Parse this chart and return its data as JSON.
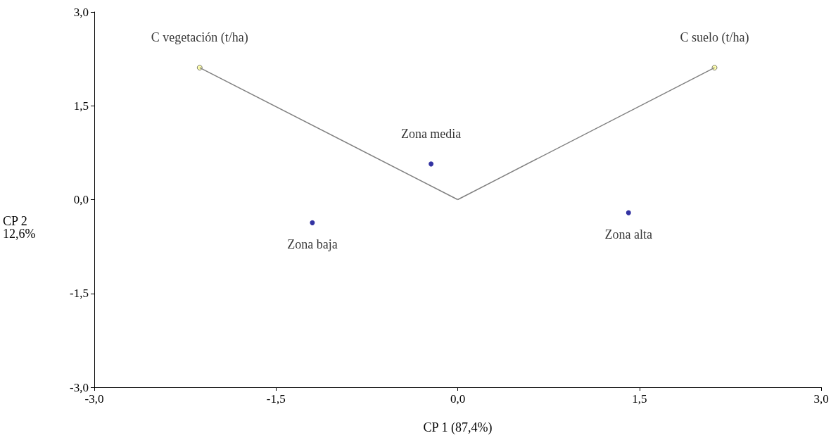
{
  "chart_data": {
    "type": "scatter",
    "xlabel": "CP 1 (87,4%)",
    "ylabel": "CP 2\n12,6%",
    "xlim": [
      -3,
      3
    ],
    "ylim": [
      -3,
      3
    ],
    "xticks": [
      {
        "value": -3,
        "label": "-3,0"
      },
      {
        "value": -1.5,
        "label": "-1,5"
      },
      {
        "value": 0,
        "label": "0,0"
      },
      {
        "value": 1.5,
        "label": "1,5"
      },
      {
        "value": 3,
        "label": "3,0"
      }
    ],
    "yticks": [
      {
        "value": -3,
        "label": "-3,0"
      },
      {
        "value": -1.5,
        "label": "-1,5"
      },
      {
        "value": 0,
        "label": "0,0"
      },
      {
        "value": 1.5,
        "label": "1,5"
      },
      {
        "value": 3,
        "label": "3,0"
      }
    ],
    "grid": false,
    "legend": false,
    "marker": "circle",
    "series": [
      {
        "type": "line",
        "color": "#808080",
        "x": [
          0,
          -2.13
        ],
        "values": [
          0,
          2.11
        ],
        "marker": "none"
      },
      {
        "type": "line",
        "color": "#808080",
        "x": [
          0,
          2.12
        ],
        "values": [
          0,
          2.11
        ],
        "marker": "none"
      },
      {
        "name": "C vegetación (t/ha)",
        "color": "#ffff99",
        "x": [
          -2.13
        ],
        "values": [
          2.11
        ]
      },
      {
        "name": "C suelo (t/ha)",
        "color": "#ffff99",
        "x": [
          2.12
        ],
        "values": [
          2.11
        ]
      },
      {
        "name": "Zona media",
        "color": "#00008b",
        "x": [
          -0.22
        ],
        "values": [
          0.57
        ]
      },
      {
        "name": "Zona baja",
        "color": "#00008b",
        "x": [
          -1.2
        ],
        "values": [
          -0.37
        ]
      },
      {
        "name": "Zona alta",
        "color": "#00008b",
        "x": [
          1.41
        ],
        "values": [
          -0.21
        ]
      }
    ]
  }
}
